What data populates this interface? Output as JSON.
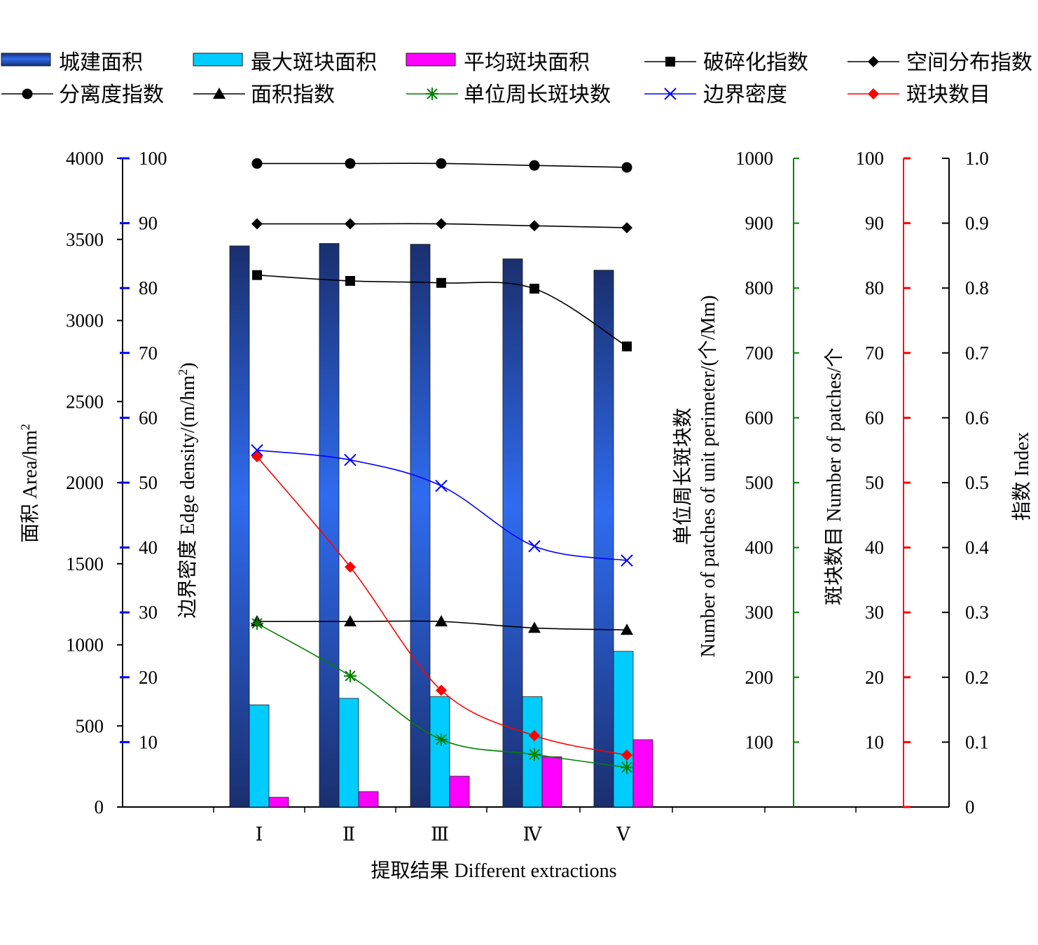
{
  "chart_data": {
    "type": "bar",
    "categories": [
      "Ⅰ",
      "Ⅱ",
      "Ⅲ",
      "Ⅳ",
      "Ⅴ"
    ],
    "xlabel": "提取结果 Different extractions",
    "bar_series": [
      {
        "name": "城建面积",
        "axis": "area",
        "color": "#2f5fd8",
        "values": [
          3460,
          3475,
          3470,
          3380,
          3310
        ]
      },
      {
        "name": "最大斑块面积",
        "axis": "area",
        "color": "#00ccff",
        "values": [
          630,
          670,
          680,
          680,
          960
        ]
      },
      {
        "name": "平均斑块面积",
        "axis": "area",
        "color": "#ff00ff",
        "values": [
          60,
          95,
          190,
          310,
          415
        ]
      }
    ],
    "line_series": [
      {
        "name": "破碎化指数",
        "axis": "index",
        "color": "#000000",
        "marker": "square",
        "values": [
          0.82,
          0.811,
          0.808,
          0.799,
          0.71
        ]
      },
      {
        "name": "空间分布指数",
        "axis": "index",
        "color": "#000000",
        "marker": "diamond",
        "values": [
          0.899,
          0.899,
          0.899,
          0.896,
          0.893
        ]
      },
      {
        "name": "分离度指数",
        "axis": "index",
        "color": "#000000",
        "marker": "circle",
        "values": [
          0.992,
          0.992,
          0.992,
          0.989,
          0.986
        ]
      },
      {
        "name": "面积指数",
        "axis": "index",
        "color": "#000000",
        "marker": "triangle",
        "values": [
          0.286,
          0.286,
          0.286,
          0.276,
          0.273
        ]
      },
      {
        "name": "单位周长斑块数",
        "axis": "perimeter",
        "color": "#008000",
        "marker": "star",
        "values": [
          283,
          202,
          104,
          81,
          61
        ]
      },
      {
        "name": "边界密度",
        "axis": "edge",
        "color": "#0000ff",
        "marker": "x",
        "values": [
          55,
          53.5,
          49.5,
          40.2,
          38
        ]
      },
      {
        "name": "斑块数目",
        "axis": "patches",
        "color": "#ff0000",
        "marker": "red-diamond",
        "values": [
          54,
          37,
          18,
          11,
          8
        ]
      }
    ],
    "axes": {
      "area": {
        "label": "面积 Area/hm",
        "label_sup": "2",
        "ylim": [
          0,
          4000
        ],
        "ticks": [
          "0",
          "500",
          "1000",
          "1500",
          "2000",
          "2500",
          "3000",
          "3500",
          "4000"
        ],
        "color": "#000000"
      },
      "edge": {
        "label": "边界密度 Edge density/(m/hm",
        "label_sup": "2",
        "label_end": ")",
        "ylim": [
          0,
          100
        ],
        "ticks": [
          "10",
          "20",
          "30",
          "40",
          "50",
          "60",
          "70",
          "80",
          "90",
          "100"
        ],
        "color": "#0000ff"
      },
      "perimeter": {
        "label_cn": "单位周长斑块数",
        "label_en": "Number of patches of unit perimeter/(个/Mm)",
        "ylim": [
          0,
          1000
        ],
        "ticks": [
          "100",
          "200",
          "300",
          "400",
          "500",
          "600",
          "700",
          "800",
          "900",
          "1000"
        ],
        "color": "#008000"
      },
      "patches": {
        "label": "斑块数目 Number of patches/个",
        "ylim": [
          0,
          100
        ],
        "ticks": [
          "10",
          "20",
          "30",
          "40",
          "50",
          "60",
          "70",
          "80",
          "90",
          "100"
        ],
        "color": "#ff0000"
      },
      "index": {
        "label": "指数 Index",
        "ylim": [
          0,
          1
        ],
        "ticks": [
          "0",
          "0.1",
          "0.2",
          "0.3",
          "0.4",
          "0.5",
          "0.6",
          "0.7",
          "0.8",
          "0.9",
          "1.0"
        ],
        "color": "#000000"
      }
    },
    "legend_placement": "top",
    "grid": false
  }
}
